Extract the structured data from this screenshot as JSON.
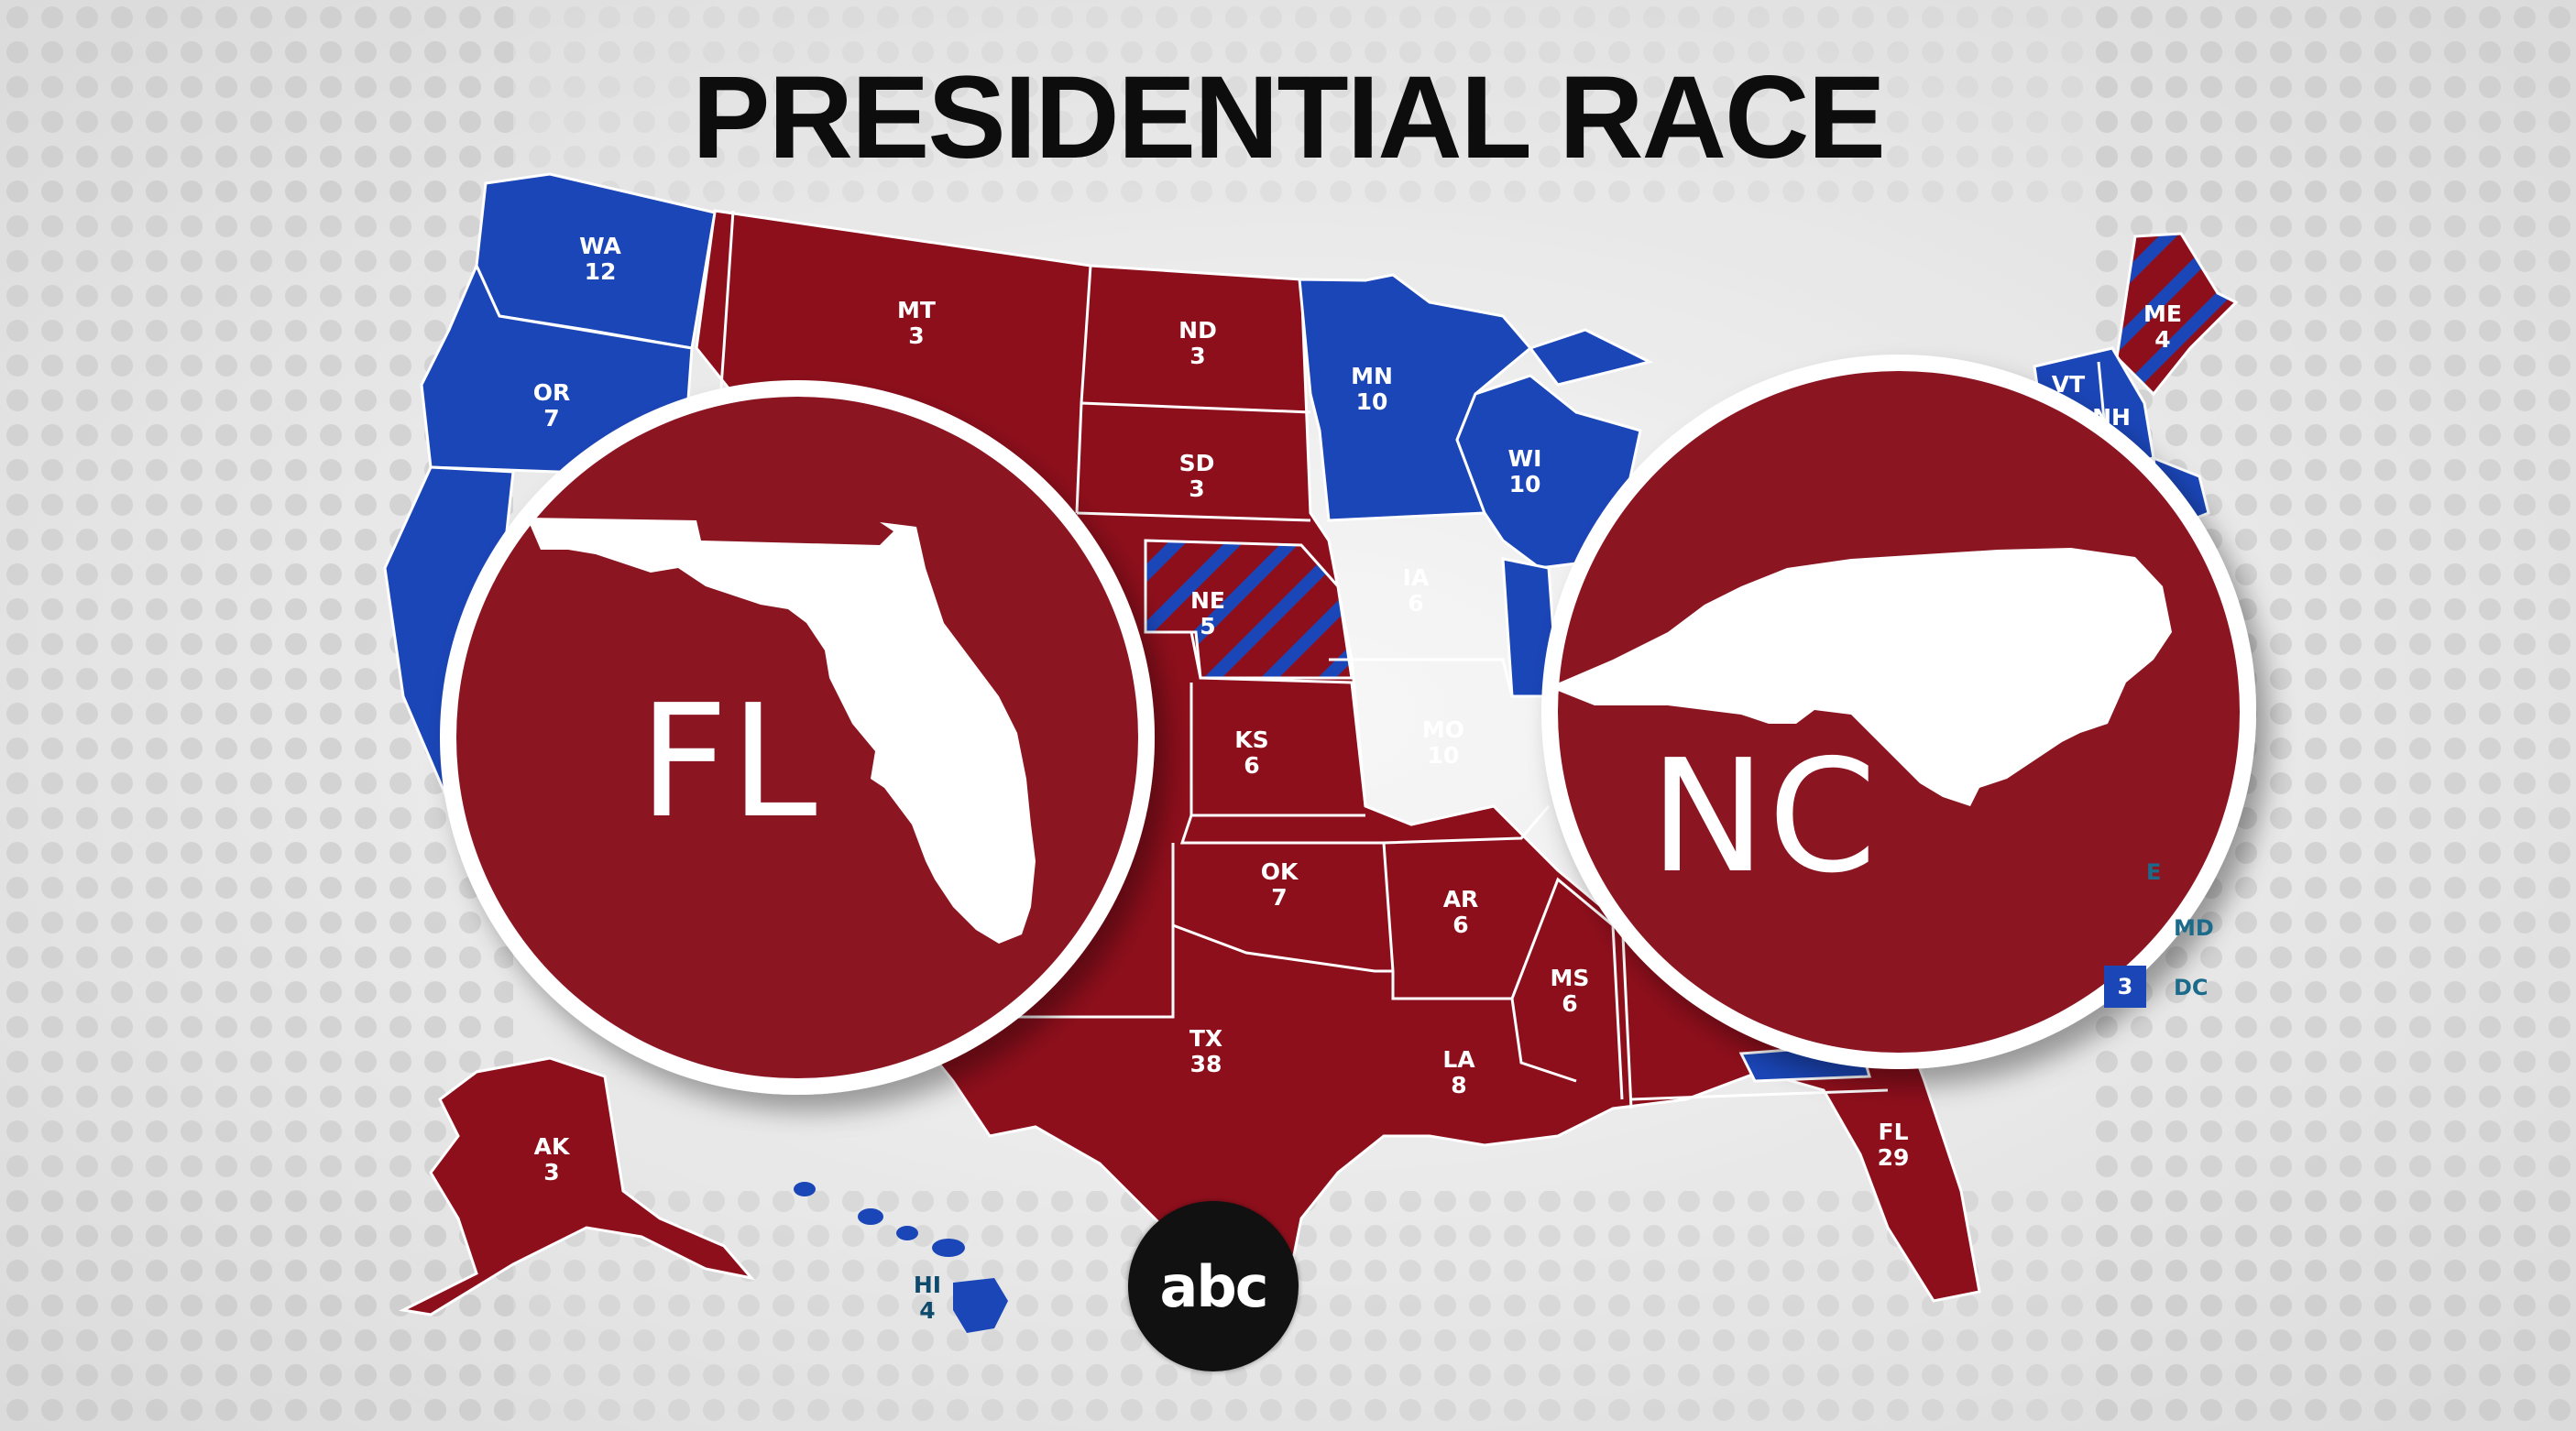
{
  "title": "PRESIDENTIAL RACE",
  "colors": {
    "red": "#8e0f1c",
    "blue": "#1b46b8",
    "circle": "#8b1222",
    "background": "#e6e6e6"
  },
  "states": [
    {
      "abbr": "WA",
      "ev": "12"
    },
    {
      "abbr": "OR",
      "ev": "7"
    },
    {
      "abbr": "MT",
      "ev": "3"
    },
    {
      "abbr": "ND",
      "ev": "3"
    },
    {
      "abbr": "SD",
      "ev": "3"
    },
    {
      "abbr": "MN",
      "ev": "10"
    },
    {
      "abbr": "WI",
      "ev": "10"
    },
    {
      "abbr": "NE",
      "ev": "5"
    },
    {
      "abbr": "IA",
      "ev": "6"
    },
    {
      "abbr": "KS",
      "ev": "6"
    },
    {
      "abbr": "MO",
      "ev": "10"
    },
    {
      "abbr": "OK",
      "ev": "7"
    },
    {
      "abbr": "AR",
      "ev": "6"
    },
    {
      "abbr": "TX",
      "ev": "38"
    },
    {
      "abbr": "LA",
      "ev": "8"
    },
    {
      "abbr": "MS",
      "ev": "6"
    },
    {
      "abbr": "FL",
      "ev": "29"
    },
    {
      "abbr": "AK",
      "ev": "3"
    },
    {
      "abbr": "HI",
      "ev": "4"
    },
    {
      "abbr": "ME",
      "ev": "4"
    },
    {
      "abbr": "VT",
      "ev": ""
    },
    {
      "abbr": "NH",
      "ev": ""
    }
  ],
  "legend": {
    "md": "MD",
    "dc": "DC",
    "dc_ev": "3",
    "de_partial": "E"
  },
  "circles": [
    {
      "abbr": "FL",
      "state_icon": "florida-silhouette-icon"
    },
    {
      "abbr": "NC",
      "state_icon": "north-carolina-silhouette-icon"
    }
  ],
  "logo": "abc"
}
